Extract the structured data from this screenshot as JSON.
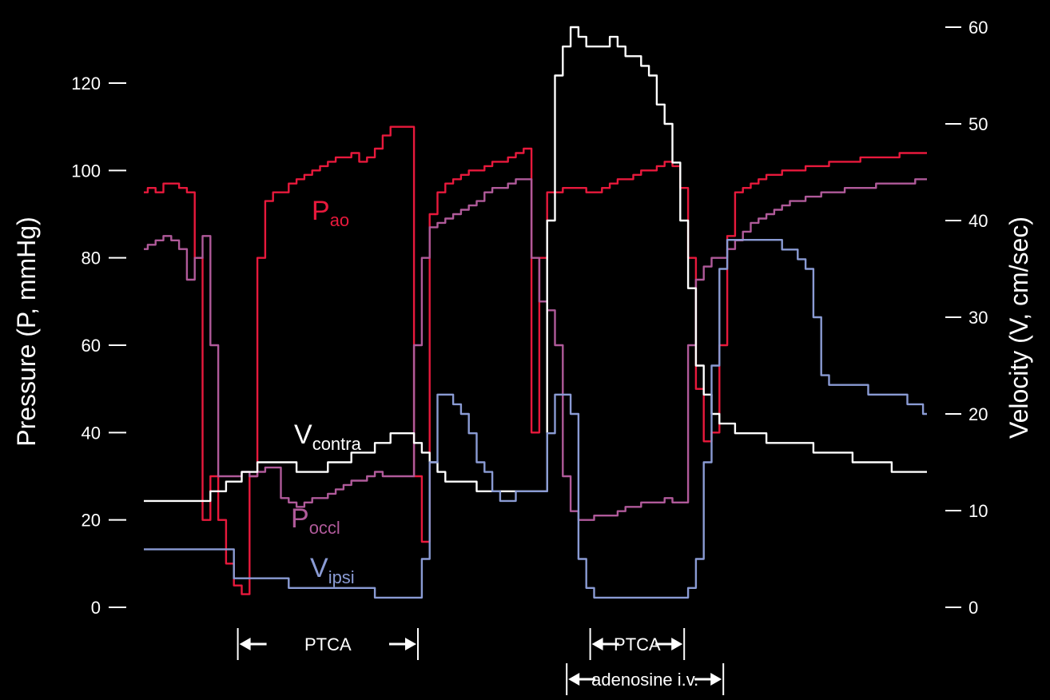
{
  "chart_data": {
    "type": "line",
    "title": "",
    "x_units": "index",
    "x": [
      0,
      1,
      2,
      3,
      4,
      5,
      6,
      7,
      8,
      9,
      10,
      11,
      12,
      13,
      14,
      15,
      16,
      17,
      18,
      19,
      20,
      21,
      22,
      23,
      24,
      25,
      26,
      27,
      28,
      29,
      30,
      31,
      32,
      33,
      34,
      35,
      36,
      37,
      38,
      39,
      40,
      41,
      42,
      43,
      44,
      45,
      46,
      47,
      48,
      49,
      50,
      51,
      52,
      53,
      54,
      55,
      56,
      57,
      58,
      59,
      60,
      61,
      62,
      63,
      64,
      65,
      66,
      67,
      68,
      69,
      70,
      71,
      72,
      73,
      74,
      75,
      76,
      77,
      78,
      79,
      80,
      81,
      82,
      83,
      84,
      85,
      86,
      87,
      88,
      89,
      90,
      91,
      92,
      93,
      94,
      95,
      96,
      97,
      98,
      99,
      100
    ],
    "y_left": {
      "label": "Pressure (P, mmHg)",
      "ticks": [
        0,
        20,
        40,
        60,
        80,
        100,
        120
      ],
      "range": [
        0,
        130
      ]
    },
    "y_right": {
      "label": "Velocity (V, cm/sec)",
      "ticks": [
        0,
        10,
        20,
        30,
        40,
        50,
        60
      ],
      "range": [
        0,
        61
      ]
    },
    "series": [
      {
        "name": "P",
        "subscript": "ao",
        "axis": "left",
        "color": "#e8193c",
        "values": [
          95,
          96,
          95,
          97,
          97,
          96,
          95,
          80,
          20,
          30,
          20,
          10,
          5,
          3,
          30,
          80,
          93,
          95,
          95,
          97,
          98,
          99,
          100,
          101,
          102,
          103,
          103,
          104,
          102,
          103,
          105,
          108,
          110,
          110,
          110,
          30,
          15,
          90,
          95,
          97,
          98,
          99,
          100,
          100,
          101,
          102,
          102,
          103,
          104,
          105,
          40,
          80,
          95,
          95,
          96,
          96,
          96,
          95,
          95,
          96,
          97,
          98,
          98,
          99,
          100,
          100,
          101,
          102,
          101,
          96,
          80,
          50,
          38,
          40,
          60,
          85,
          95,
          96,
          97,
          98,
          99,
          99,
          100,
          100,
          100,
          101,
          101,
          101,
          102,
          102,
          102,
          102,
          103,
          103,
          103,
          103,
          103,
          104,
          104,
          104,
          104
        ]
      },
      {
        "name": "P",
        "subscript": "occl",
        "axis": "left",
        "color": "#b05a9a",
        "values": [
          82,
          83,
          84,
          85,
          84,
          82,
          75,
          80,
          85,
          60,
          30,
          30,
          30,
          31,
          30,
          31,
          32,
          32,
          25,
          24,
          23,
          24,
          25,
          25,
          26,
          27,
          28,
          29,
          29,
          30,
          31,
          30,
          30,
          30,
          30,
          60,
          80,
          87,
          88,
          89,
          90,
          91,
          92,
          93,
          95,
          96,
          96,
          97,
          98,
          98,
          80,
          70,
          68,
          60,
          30,
          22,
          20,
          20,
          21,
          21,
          21,
          22,
          23,
          23,
          24,
          24,
          24,
          25,
          24,
          24,
          60,
          75,
          78,
          80,
          80,
          82,
          84,
          86,
          88,
          89,
          90,
          91,
          92,
          93,
          93,
          94,
          94,
          95,
          95,
          95,
          96,
          96,
          96,
          96,
          97,
          97,
          97,
          97,
          97,
          98,
          98
        ]
      },
      {
        "name": "V",
        "subscript": "contra",
        "axis": "right",
        "color": "#ffffff",
        "values": [
          11,
          11,
          11,
          11,
          11,
          11,
          11,
          11,
          11,
          12,
          12,
          13,
          13,
          14,
          14,
          15,
          15,
          15,
          15,
          15,
          14,
          14,
          14,
          14,
          15,
          15,
          15,
          16,
          16,
          16,
          17,
          17,
          18,
          18,
          18,
          17,
          16,
          15,
          14,
          13,
          13,
          13,
          13,
          12,
          12,
          12,
          12,
          12,
          12,
          12,
          12,
          12,
          40,
          55,
          58,
          60,
          59,
          58,
          58,
          58,
          59,
          58,
          57,
          57,
          56,
          55,
          52,
          50,
          46,
          40,
          33,
          25,
          22,
          20,
          19,
          19,
          18,
          18,
          18,
          18,
          17,
          17,
          17,
          17,
          17,
          17,
          16,
          16,
          16,
          16,
          16,
          15,
          15,
          15,
          15,
          15,
          14,
          14,
          14,
          14,
          14
        ]
      },
      {
        "name": "V",
        "subscript": "ipsi",
        "axis": "right",
        "color": "#8a9bd4",
        "values": [
          6,
          6,
          6,
          6,
          6,
          6,
          6,
          6,
          6,
          6,
          6,
          6,
          3,
          3,
          3,
          3,
          3,
          3,
          3,
          2,
          2,
          2,
          2,
          2,
          2,
          2,
          2,
          2,
          2,
          2,
          1,
          1,
          1,
          1,
          1,
          1,
          5,
          15,
          22,
          22,
          21,
          20,
          18,
          15,
          14,
          12,
          11,
          11,
          12,
          12,
          12,
          12,
          18,
          22,
          22,
          20,
          5,
          2,
          1,
          1,
          1,
          1,
          1,
          1,
          1,
          1,
          1,
          1,
          1,
          1,
          2,
          5,
          15,
          25,
          35,
          38,
          38,
          38,
          38,
          38,
          38,
          38,
          37,
          37,
          36,
          35,
          30,
          24,
          23,
          23,
          23,
          23,
          23,
          22,
          22,
          22,
          22,
          22,
          21,
          21,
          20
        ]
      }
    ],
    "intervals": [
      {
        "label": "PTCA",
        "start": 12,
        "end": 35
      },
      {
        "label": "PTCA",
        "start": 57,
        "end": 69
      },
      {
        "label": "adenosine i.v.",
        "start": 54,
        "end": 74
      }
    ],
    "grid": false,
    "legend": "inline labels"
  }
}
